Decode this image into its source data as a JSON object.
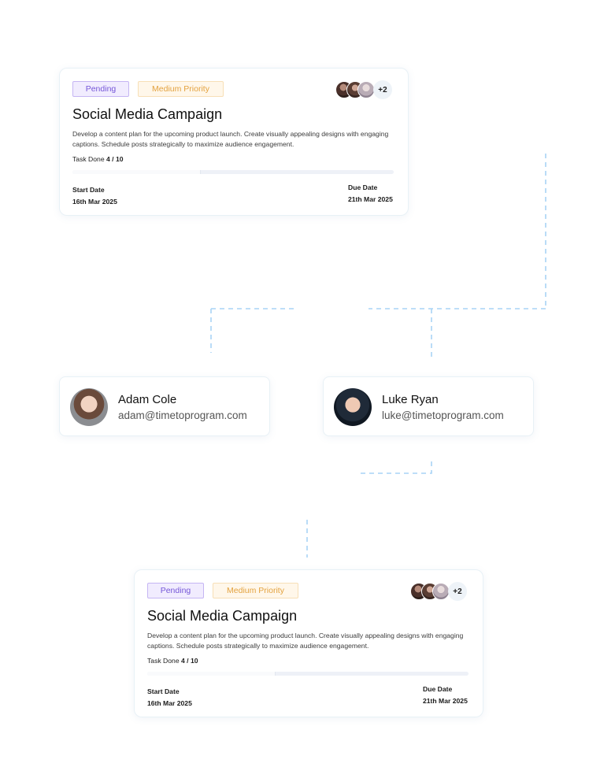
{
  "task_cards": [
    {
      "status": "Pending",
      "priority": "Medium Priority",
      "extra_members": "+2",
      "title": "Social Media Campaign",
      "description": "Develop a content plan for the upcoming product launch. Create visually appealing designs with engaging captions. Schedule posts strategically to maximize audience engagement.",
      "task_done_label": "Task Done",
      "task_done_value": "4 / 10",
      "progress": 0.4,
      "start_label": "Start Date",
      "start_value": "16th Mar 2025",
      "due_label": "Due Date",
      "due_value": "21th Mar 2025"
    },
    {
      "status": "Pending",
      "priority": "Medium Priority",
      "extra_members": "+2",
      "title": "Social Media Campaign",
      "description": "Develop a content plan for the upcoming product launch. Create visually appealing designs with engaging captions. Schedule posts strategically to maximize audience engagement.",
      "task_done_label": "Task Done",
      "task_done_value": "4 / 10",
      "progress": 0.4,
      "start_label": "Start Date",
      "start_value": "16th Mar 2025",
      "due_label": "Due Date",
      "due_value": "21th Mar 2025"
    }
  ],
  "users": [
    {
      "name": "Adam Cole",
      "email": "adam@timetoprogram.com"
    },
    {
      "name": "Luke Ryan",
      "email": "luke@timetoprogram.com"
    }
  ],
  "colors": {
    "connector": "#a8d4f5",
    "status_text": "#7556d8",
    "priority_text": "#e3a23f"
  }
}
